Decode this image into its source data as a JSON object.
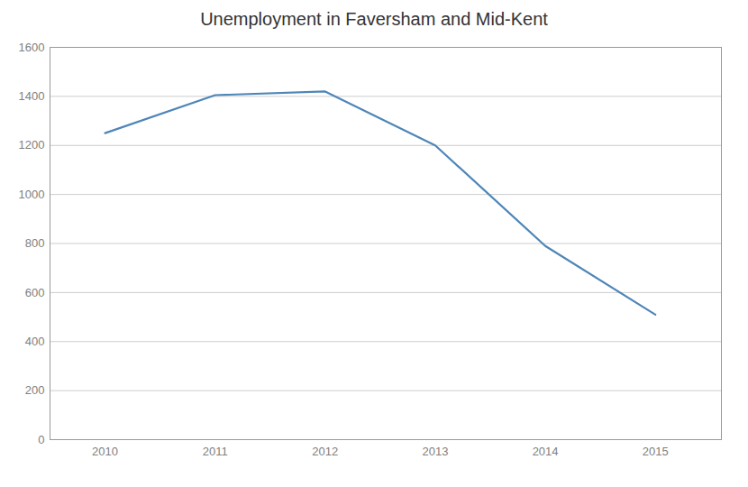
{
  "chart_data": {
    "type": "line",
    "title": "Unemployment in Faversham and Mid-Kent",
    "x": [
      2010,
      2011,
      2012,
      2013,
      2014,
      2015
    ],
    "values": [
      1250,
      1405,
      1420,
      1200,
      790,
      510
    ],
    "color": "#4e86b8",
    "xlim": [
      2009.5,
      2015.6
    ],
    "xticks": [
      2010,
      2011,
      2012,
      2013,
      2014,
      2015
    ],
    "ylim": [
      0,
      1600
    ],
    "yticks": [
      0,
      200,
      400,
      600,
      800,
      1000,
      1200,
      1400,
      1600
    ],
    "grid": true
  }
}
